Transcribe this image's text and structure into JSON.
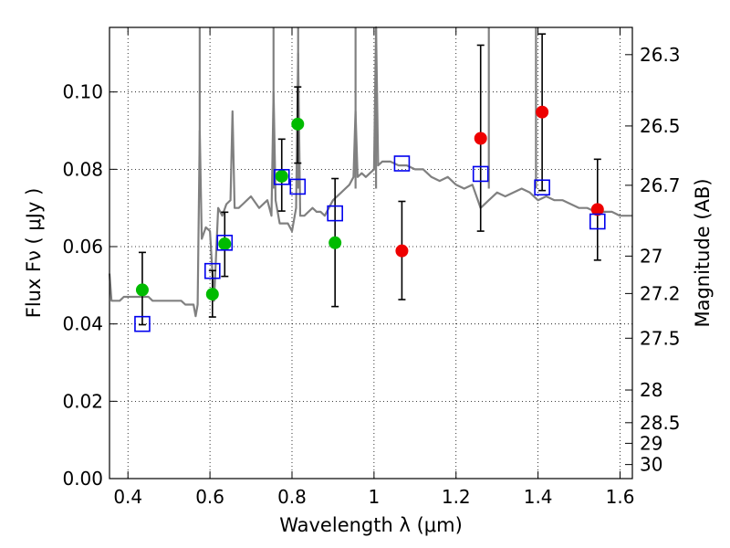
{
  "chart_data": {
    "type": "scatter",
    "xlabel": "Wavelength  λ (μm)",
    "ylabel": "Flux  Fν  ( μJy )",
    "y2label": "Magnitude (AB)",
    "xlim": [
      0.355,
      1.63
    ],
    "ylim": [
      0.0,
      0.1167
    ],
    "grid": true,
    "x_ticks": [
      {
        "value": 0.4,
        "label": "0.4"
      },
      {
        "value": 0.6,
        "label": "0.6"
      },
      {
        "value": 0.8,
        "label": "0.8"
      },
      {
        "value": 1.0,
        "label": "1"
      },
      {
        "value": 1.2,
        "label": "1.2"
      },
      {
        "value": 1.4,
        "label": "1.4"
      },
      {
        "value": 1.6,
        "label": "1.6"
      }
    ],
    "y_ticks": [
      {
        "value": 0.0,
        "label": "0.00"
      },
      {
        "value": 0.02,
        "label": "0.02"
      },
      {
        "value": 0.04,
        "label": "0.04"
      },
      {
        "value": 0.06,
        "label": "0.06"
      },
      {
        "value": 0.08,
        "label": "0.08"
      },
      {
        "value": 0.1,
        "label": "0.10"
      }
    ],
    "y2_ticks": [
      {
        "value": 26.3,
        "label": "26.3"
      },
      {
        "value": 26.5,
        "label": "26.5"
      },
      {
        "value": 26.7,
        "label": "26.7"
      },
      {
        "value": 27.0,
        "label": "27"
      },
      {
        "value": 27.2,
        "label": "27.2"
      },
      {
        "value": 27.5,
        "label": "27.5"
      },
      {
        "value": 28.0,
        "label": "28"
      },
      {
        "value": 28.5,
        "label": "28.5"
      },
      {
        "value": 29.0,
        "label": "29"
      },
      {
        "value": 30.0,
        "label": "30"
      }
    ],
    "series": [
      {
        "marker": "circle",
        "filled": true,
        "color": "#00bb00",
        "points": [
          {
            "x": 0.435,
            "y": 0.0488,
            "err": [
              0.0398,
              0.0585
            ]
          },
          {
            "x": 0.606,
            "y": 0.0477,
            "err": [
              0.0418,
              0.0538
            ]
          },
          {
            "x": 0.636,
            "y": 0.0607,
            "err": [
              0.0523,
              0.0689
            ]
          },
          {
            "x": 0.775,
            "y": 0.0782,
            "err": [
              0.0692,
              0.0878
            ]
          },
          {
            "x": 0.814,
            "y": 0.0917,
            "err": [
              0.0816,
              0.1013
            ]
          },
          {
            "x": 0.905,
            "y": 0.061,
            "err": [
              0.0445,
              0.0776
            ]
          }
        ]
      },
      {
        "marker": "circle",
        "filled": true,
        "color": "#ee0000",
        "points": [
          {
            "x": 1.068,
            "y": 0.0589,
            "err": [
              0.0463,
              0.0717
            ]
          },
          {
            "x": 1.26,
            "y": 0.088,
            "err": [
              0.064,
              0.1121
            ]
          },
          {
            "x": 1.41,
            "y": 0.0948,
            "err": [
              0.0745,
              0.115
            ]
          },
          {
            "x": 1.545,
            "y": 0.0696,
            "err": [
              0.0565,
              0.0826
            ]
          }
        ]
      },
      {
        "marker": "square",
        "filled": false,
        "color": "#0000ee",
        "points": [
          {
            "x": 0.435,
            "y": 0.04
          },
          {
            "x": 0.606,
            "y": 0.0537
          },
          {
            "x": 0.636,
            "y": 0.061
          },
          {
            "x": 0.775,
            "y": 0.078
          },
          {
            "x": 0.814,
            "y": 0.0755
          },
          {
            "x": 0.905,
            "y": 0.0686
          },
          {
            "x": 1.068,
            "y": 0.0815
          },
          {
            "x": 1.26,
            "y": 0.0788
          },
          {
            "x": 1.41,
            "y": 0.0753
          },
          {
            "x": 1.545,
            "y": 0.0665
          }
        ]
      }
    ],
    "spectrum": {
      "color": "#808080",
      "x": [
        0.355,
        0.36,
        0.37,
        0.38,
        0.39,
        0.4,
        0.41,
        0.42,
        0.43,
        0.44,
        0.45,
        0.46,
        0.47,
        0.48,
        0.49,
        0.5,
        0.51,
        0.52,
        0.53,
        0.54,
        0.55,
        0.56,
        0.565,
        0.57,
        0.575,
        0.58,
        0.59,
        0.6,
        0.61,
        0.62,
        0.63,
        0.64,
        0.65,
        0.655,
        0.66,
        0.67,
        0.68,
        0.69,
        0.7,
        0.72,
        0.74,
        0.75,
        0.755,
        0.76,
        0.77,
        0.78,
        0.79,
        0.8,
        0.81,
        0.815,
        0.82,
        0.83,
        0.84,
        0.85,
        0.86,
        0.87,
        0.88,
        0.9,
        0.92,
        0.94,
        0.95,
        0.955,
        0.96,
        0.97,
        0.98,
        0.99,
        1.0,
        1.005,
        1.01,
        1.02,
        1.04,
        1.06,
        1.08,
        1.1,
        1.12,
        1.14,
        1.16,
        1.18,
        1.2,
        1.22,
        1.24,
        1.26,
        1.28,
        1.3,
        1.32,
        1.34,
        1.36,
        1.38,
        1.4,
        1.42,
        1.44,
        1.46,
        1.48,
        1.5,
        1.52,
        1.54,
        1.55,
        1.56,
        1.58,
        1.6,
        1.62,
        1.63
      ],
      "y": [
        0.053,
        0.046,
        0.046,
        0.046,
        0.047,
        0.047,
        0.047,
        0.047,
        0.047,
        0.047,
        0.047,
        0.046,
        0.046,
        0.046,
        0.046,
        0.046,
        0.046,
        0.046,
        0.046,
        0.045,
        0.045,
        0.045,
        0.042,
        0.045,
        0.09,
        0.062,
        0.065,
        0.064,
        0.046,
        0.07,
        0.068,
        0.071,
        0.072,
        0.095,
        0.07,
        0.07,
        0.071,
        0.072,
        0.073,
        0.07,
        0.072,
        0.068,
        0.1,
        0.072,
        0.066,
        0.066,
        0.066,
        0.064,
        0.07,
        0.11,
        0.068,
        0.068,
        0.069,
        0.07,
        0.069,
        0.069,
        0.068,
        0.072,
        0.074,
        0.076,
        0.078,
        0.095,
        0.078,
        0.079,
        0.078,
        0.079,
        0.08,
        0.117,
        0.081,
        0.082,
        0.082,
        0.081,
        0.081,
        0.08,
        0.08,
        0.078,
        0.077,
        0.078,
        0.076,
        0.075,
        0.076,
        0.07,
        0.072,
        0.074,
        0.073,
        0.074,
        0.075,
        0.074,
        0.072,
        0.073,
        0.072,
        0.072,
        0.071,
        0.07,
        0.07,
        0.069,
        0.0695,
        0.069,
        0.069,
        0.068,
        0.068,
        0.068
      ],
      "spikes": [
        0.575,
        0.755,
        0.815,
        0.955,
        1.005,
        1.28,
        1.395
      ]
    }
  }
}
